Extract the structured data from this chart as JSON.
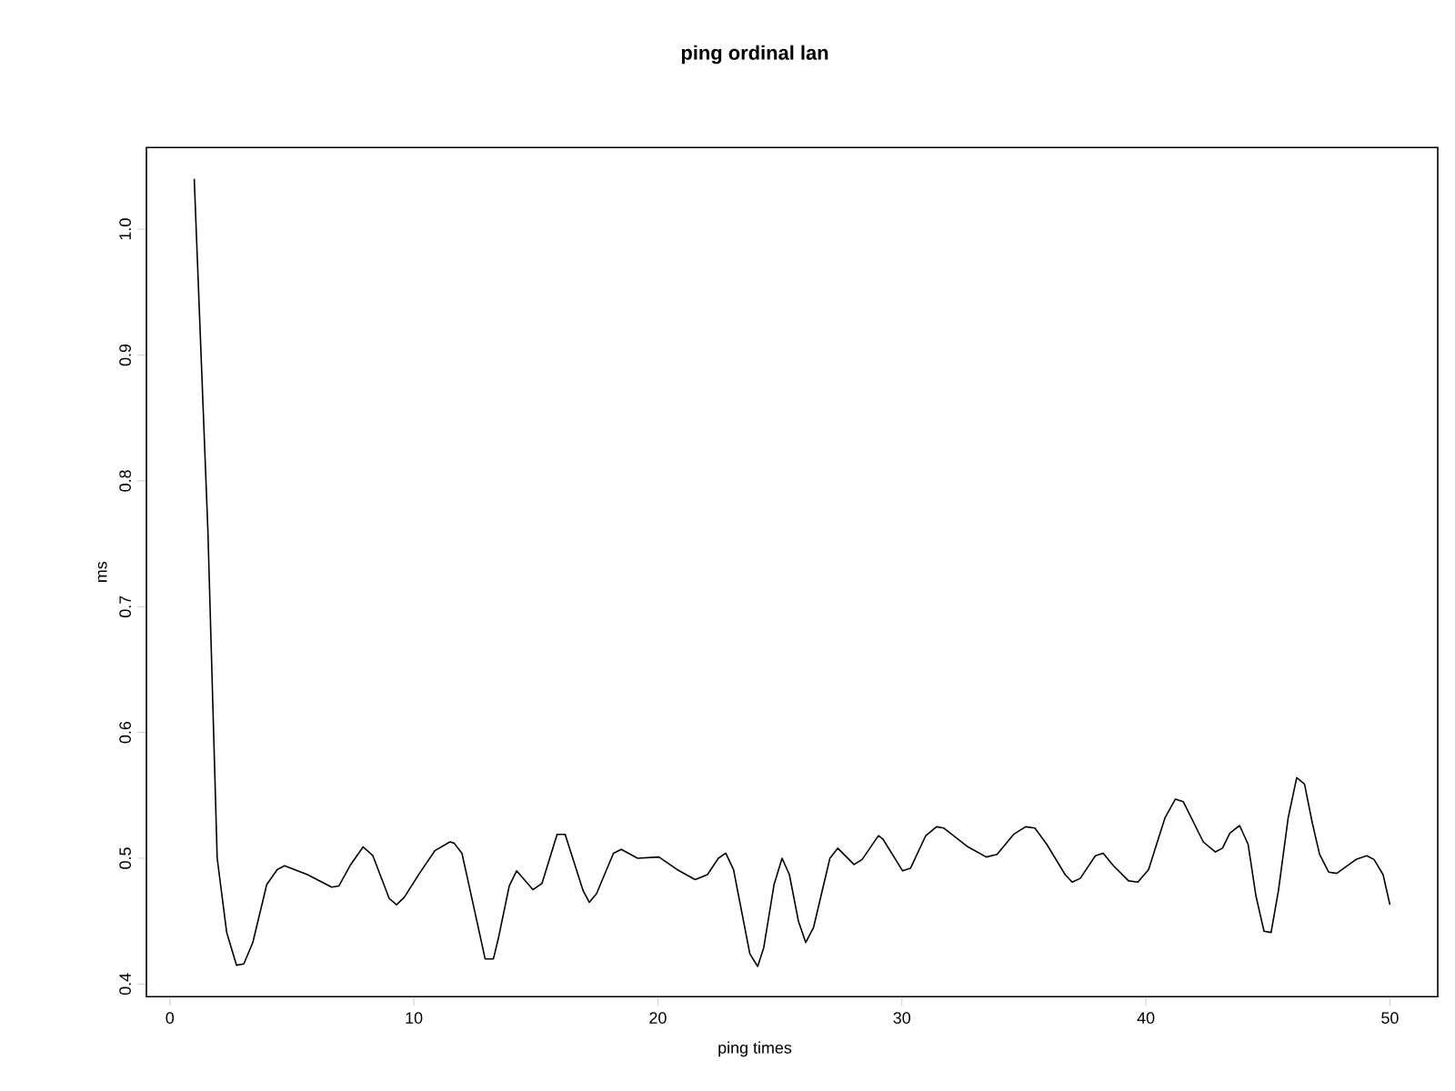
{
  "chart_data": {
    "type": "line",
    "title": "ping ordinal lan",
    "xlabel": "ping times",
    "ylabel": "ms",
    "x": [
      1,
      1.56,
      1.94,
      2.33,
      2.73,
      3.03,
      3.4,
      3.97,
      4.4,
      4.7,
      5.64,
      6.63,
      6.93,
      7.38,
      7.92,
      8.32,
      8.99,
      9.29,
      9.61,
      10.23,
      10.86,
      11.48,
      11.65,
      11.97,
      12.47,
      12.92,
      13.26,
      13.46,
      13.91,
      14.21,
      14.88,
      15.25,
      15.87,
      16.2,
      16.94,
      17.19,
      17.49,
      18.18,
      18.5,
      19.17,
      20.04,
      20.79,
      21.53,
      22.03,
      22.48,
      22.78,
      23.1,
      23.77,
      24.09,
      24.34,
      24.76,
      25.09,
      25.39,
      25.76,
      26.06,
      26.38,
      27.05,
      27.37,
      28.04,
      28.37,
      29.04,
      29.23,
      30.03,
      30.35,
      30.98,
      31.42,
      31.72,
      32.71,
      33.46,
      33.9,
      34.58,
      35.07,
      35.45,
      35.94,
      36.69,
      36.98,
      37.31,
      37.93,
      38.25,
      38.67,
      39.29,
      39.67,
      40.11,
      40.78,
      41.21,
      41.53,
      42.35,
      42.85,
      43.14,
      43.44,
      43.84,
      44.19,
      44.51,
      44.84,
      45.13,
      45.43,
      45.83,
      46.18,
      46.5,
      46.82,
      47.12,
      47.49,
      47.82,
      48.61,
      49.05,
      49.35,
      49.72,
      50
    ],
    "values": [
      1.04,
      0.76,
      0.5,
      0.441,
      0.415,
      0.416,
      0.433,
      0.479,
      0.491,
      0.494,
      0.487,
      0.477,
      0.478,
      0.494,
      0.509,
      0.502,
      0.468,
      0.463,
      0.469,
      0.488,
      0.506,
      0.513,
      0.512,
      0.504,
      0.46,
      0.42,
      0.42,
      0.436,
      0.478,
      0.49,
      0.475,
      0.48,
      0.519,
      0.519,
      0.474,
      0.465,
      0.472,
      0.504,
      0.507,
      0.5,
      0.501,
      0.491,
      0.483,
      0.487,
      0.5,
      0.504,
      0.491,
      0.424,
      0.414,
      0.429,
      0.479,
      0.5,
      0.487,
      0.45,
      0.433,
      0.445,
      0.5,
      0.508,
      0.495,
      0.499,
      0.518,
      0.515,
      0.49,
      0.492,
      0.518,
      0.525,
      0.524,
      0.509,
      0.501,
      0.503,
      0.519,
      0.525,
      0.524,
      0.511,
      0.487,
      0.481,
      0.484,
      0.502,
      0.504,
      0.494,
      0.482,
      0.481,
      0.491,
      0.532,
      0.547,
      0.545,
      0.513,
      0.505,
      0.508,
      0.52,
      0.526,
      0.511,
      0.47,
      0.442,
      0.441,
      0.474,
      0.532,
      0.564,
      0.559,
      0.528,
      0.503,
      0.489,
      0.488,
      0.499,
      0.502,
      0.499,
      0.487,
      0.463
    ],
    "color": "#000000",
    "line_style": "solid",
    "marker": "none",
    "xlim": [
      -0.96,
      51.96
    ],
    "ylim": [
      0.39,
      1.065
    ],
    "xticks": [
      0,
      10,
      20,
      30,
      40,
      50
    ],
    "yticks": [
      0.4,
      0.5,
      0.6,
      0.7,
      0.8,
      0.9,
      {
        "value": 1.0,
        "label": "1.0"
      }
    ]
  }
}
